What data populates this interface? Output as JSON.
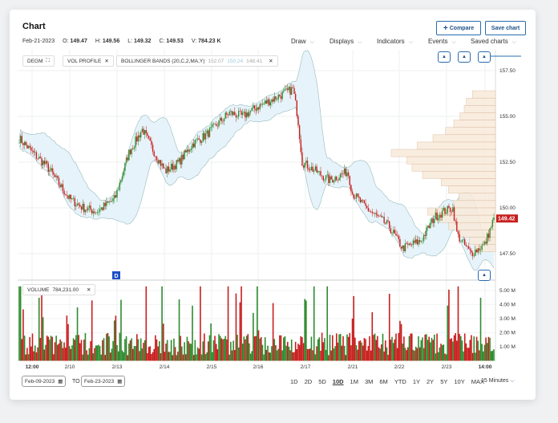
{
  "header": {
    "title": "Chart",
    "compare_label": "Compare",
    "save_label": "Save chart"
  },
  "ohlc": {
    "date": "Feb-21-2023",
    "open_label": "O:",
    "open": "149.47",
    "high_label": "H:",
    "high": "149.56",
    "low_label": "L:",
    "low": "149.32",
    "close_label": "C:",
    "close": "149.53",
    "volume_label": "V:",
    "volume": "784.23 K"
  },
  "menus": [
    "Draw",
    "Displays",
    "Indicators",
    "Events",
    "Saved charts"
  ],
  "chips": {
    "symbol": "DEGM",
    "vol_profile": "VOL PROFILE",
    "bollinger": "BOLLINGER BANDS (20,C,2,MA,Y)",
    "bb_upper": "152.07",
    "bb_mid": "150.24",
    "bb_lower": "148.41",
    "volume_label": "VOLUME",
    "volume_value": "784,231.00"
  },
  "marker": "D",
  "last_price": "149.42",
  "colors": {
    "up": "#2e8b2e",
    "down": "#c81e1e",
    "band": "#e6f3fa",
    "profile": "#f9eadb",
    "accent": "#1d4f8a"
  },
  "chart_data": {
    "type": "candlestick",
    "price_axis": {
      "ticks": [
        "157.50",
        "155.00",
        "152.50",
        "150.00",
        "147.50"
      ],
      "range": [
        146.9,
        158.2
      ]
    },
    "volume_axis": {
      "ticks": [
        "5.00 M",
        "4.00 M",
        "3.00 M",
        "2.00 M",
        "1.00 M"
      ],
      "range": [
        0,
        5.5
      ]
    },
    "x_labels": [
      "12:00",
      "2/10",
      "2/13",
      "2/14",
      "2/15",
      "2/16",
      "2/17",
      "2/21",
      "2/22",
      "2/23",
      "14:00"
    ],
    "close_path": [
      [
        0,
        153.8
      ],
      [
        3,
        153
      ],
      [
        6,
        152.3
      ],
      [
        11,
        150.5
      ],
      [
        14,
        150
      ],
      [
        17,
        149.8
      ],
      [
        21,
        150.5
      ],
      [
        24,
        153
      ],
      [
        27,
        154.3
      ],
      [
        29,
        153.3
      ],
      [
        32,
        152
      ],
      [
        35,
        152.5
      ],
      [
        38,
        153.5
      ],
      [
        41,
        154
      ],
      [
        46,
        155.2
      ],
      [
        49,
        155
      ],
      [
        52,
        155.5
      ],
      [
        56,
        156
      ],
      [
        60,
        156.5
      ],
      [
        61,
        155
      ],
      [
        62,
        152.5
      ],
      [
        65,
        152
      ],
      [
        68,
        151.5
      ],
      [
        72,
        152
      ],
      [
        73,
        150.8
      ],
      [
        76,
        150
      ],
      [
        81,
        149
      ],
      [
        84,
        147.8
      ],
      [
        88,
        148.2
      ],
      [
        91,
        149.5
      ],
      [
        93,
        149.8
      ],
      [
        95,
        150
      ],
      [
        96,
        148.5
      ],
      [
        99,
        147.5
      ],
      [
        102,
        148
      ],
      [
        104,
        149.4
      ]
    ],
    "volume_profile": {
      "levels": [
        156.2,
        155.8,
        155.4,
        155,
        154.6,
        154.2,
        153.8,
        153.4,
        153,
        152.6,
        152.2,
        151.8,
        151.4,
        151,
        150.6,
        150.2,
        149.8,
        149.4,
        149,
        148.6,
        148.2,
        147.8
      ],
      "volumes": [
        22,
        28,
        30,
        34,
        40,
        48,
        60,
        75,
        100,
        85,
        80,
        70,
        52,
        45,
        35,
        40,
        65,
        55,
        45,
        35,
        25,
        20
      ]
    }
  },
  "footer": {
    "from": "Feb-09-2023",
    "to_label": "TO",
    "to": "Feb-23-2023",
    "ranges": [
      "1D",
      "2D",
      "5D",
      "10D",
      "1M",
      "3M",
      "6M",
      "YTD",
      "1Y",
      "2Y",
      "5Y",
      "10Y",
      "MAX"
    ],
    "selected_range": "10D",
    "interval": "15 Minutes"
  }
}
